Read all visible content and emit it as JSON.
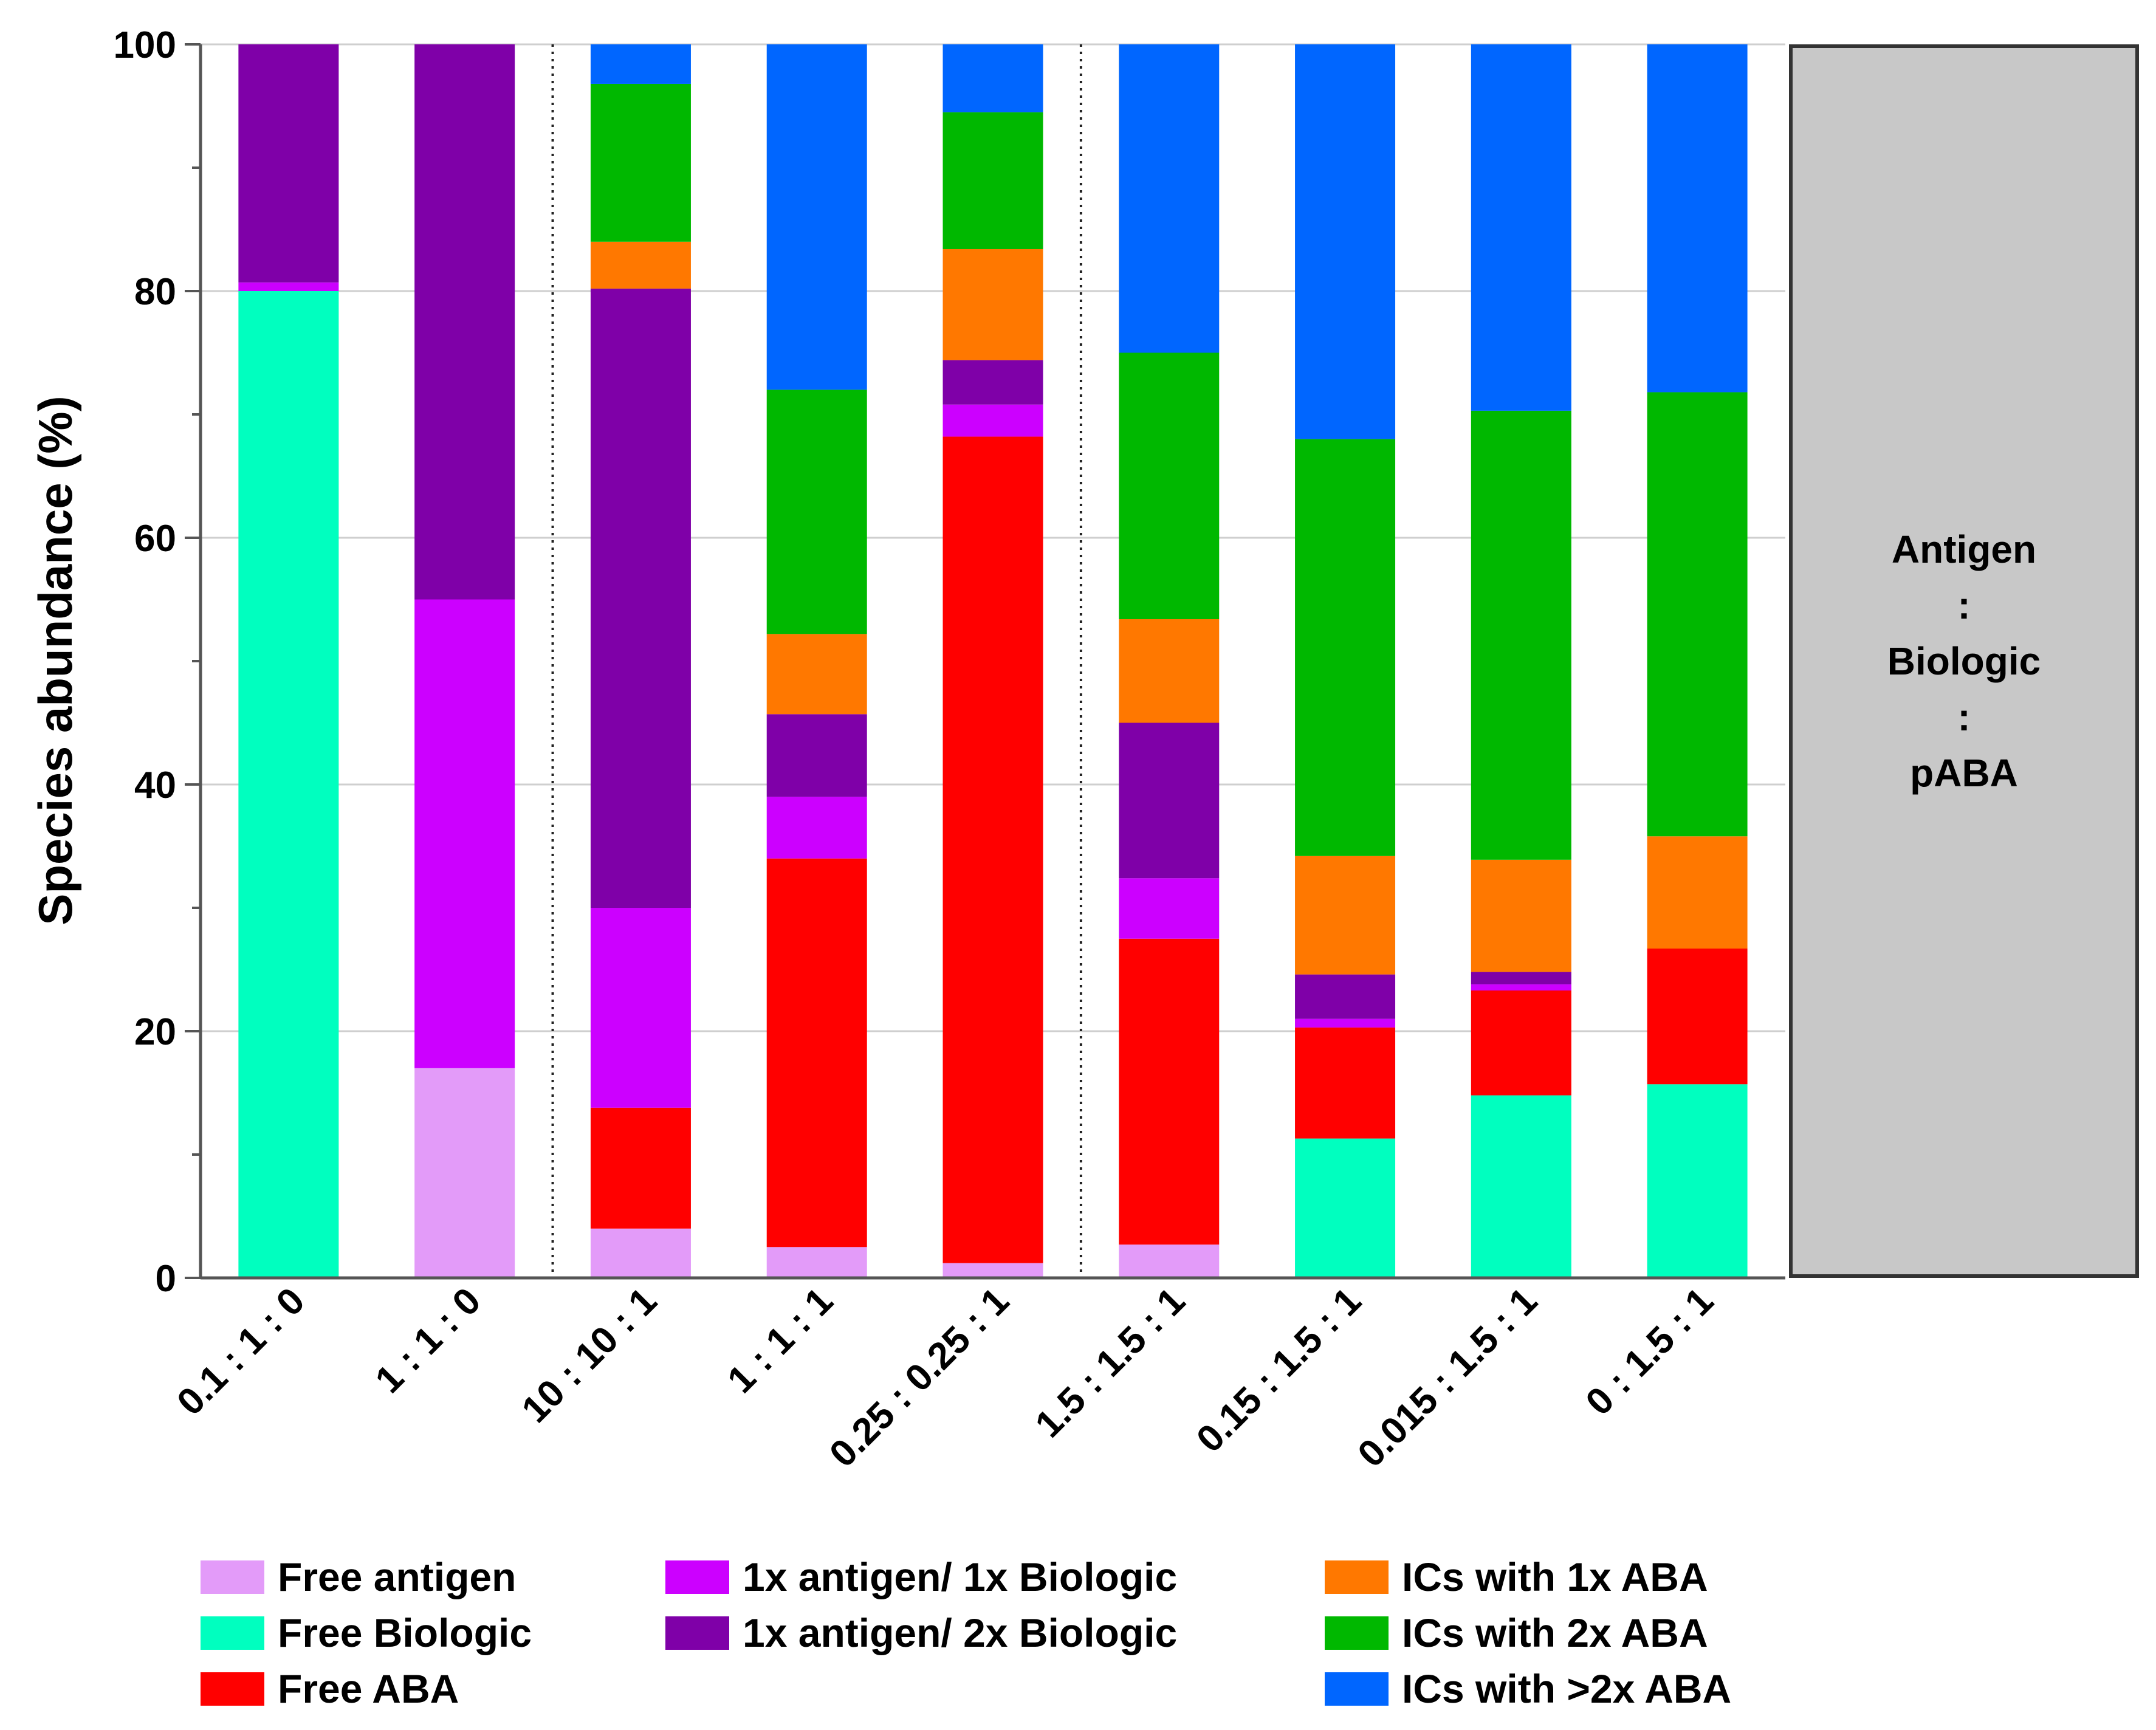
{
  "chart_data": {
    "type": "bar",
    "stacked": true,
    "ylabel": "Species abundance (%)",
    "xlabel": "",
    "ylim": [
      0,
      100
    ],
    "yticks": [
      0,
      20,
      40,
      60,
      80,
      100
    ],
    "grid": true,
    "categories": [
      "0.1 : 1 : 0",
      "1 : 1 : 0",
      "10 : 10 : 1",
      "1 : 1 : 1",
      "0.25 : 0.25 : 1",
      "1.5 : 1.5 : 1",
      "0.15 : 1.5 : 1",
      "0.015 : 1.5 : 1",
      "0 : 1.5 : 1"
    ],
    "group_separators_after": [
      1,
      4
    ],
    "series": [
      {
        "name": "Free antigen",
        "color": "#e39bf9",
        "values": [
          0,
          17,
          4,
          2.5,
          1.2,
          2.7,
          0,
          0,
          0
        ]
      },
      {
        "name": "Free Biologic",
        "color": "#00ffbf",
        "values": [
          80,
          0,
          0,
          0,
          0,
          0,
          11.3,
          14.8,
          15.7
        ]
      },
      {
        "name": "Free ABA",
        "color": "#ff0000",
        "values": [
          0,
          0,
          9.8,
          31.5,
          67,
          24.8,
          9,
          8.5,
          11
        ]
      },
      {
        "name": "1x antigen/ 1x Biologic",
        "color": "#cc00ff",
        "values": [
          0.7,
          38,
          16.2,
          5,
          2.6,
          4.9,
          0.7,
          0.5,
          0
        ]
      },
      {
        "name": "1x antigen/ 2x Biologic",
        "color": "#7f00a8",
        "values": [
          19.3,
          45,
          50.2,
          6.7,
          3.6,
          12.6,
          3.6,
          1,
          0
        ]
      },
      {
        "name": "ICs with 1x ABA",
        "color": "#ff7800",
        "values": [
          0,
          0,
          3.8,
          6.5,
          9,
          8.4,
          9.6,
          9.1,
          9.1
        ]
      },
      {
        "name": "ICs with 2x ABA",
        "color": "#00b800",
        "values": [
          0,
          0,
          12.8,
          19.8,
          11.1,
          21.6,
          33.8,
          36.4,
          36
        ]
      },
      {
        "name": "ICs with >2x ABA",
        "color": "#0066ff",
        "values": [
          0,
          0,
          3.2,
          28,
          5.5,
          25,
          32,
          29.7,
          28.2
        ]
      }
    ]
  },
  "ratio_box": {
    "lines": [
      "Antigen",
      ":",
      "Biologic",
      ":",
      "pABA"
    ]
  },
  "legend_layout": {
    "columns": [
      [
        "Free antigen",
        "Free Biologic",
        "Free ABA"
      ],
      [
        "1x antigen/ 1x Biologic",
        "1x antigen/ 2x Biologic"
      ],
      [
        "ICs with 1x ABA",
        "ICs with 2x ABA",
        "ICs with >2x ABA"
      ]
    ]
  }
}
